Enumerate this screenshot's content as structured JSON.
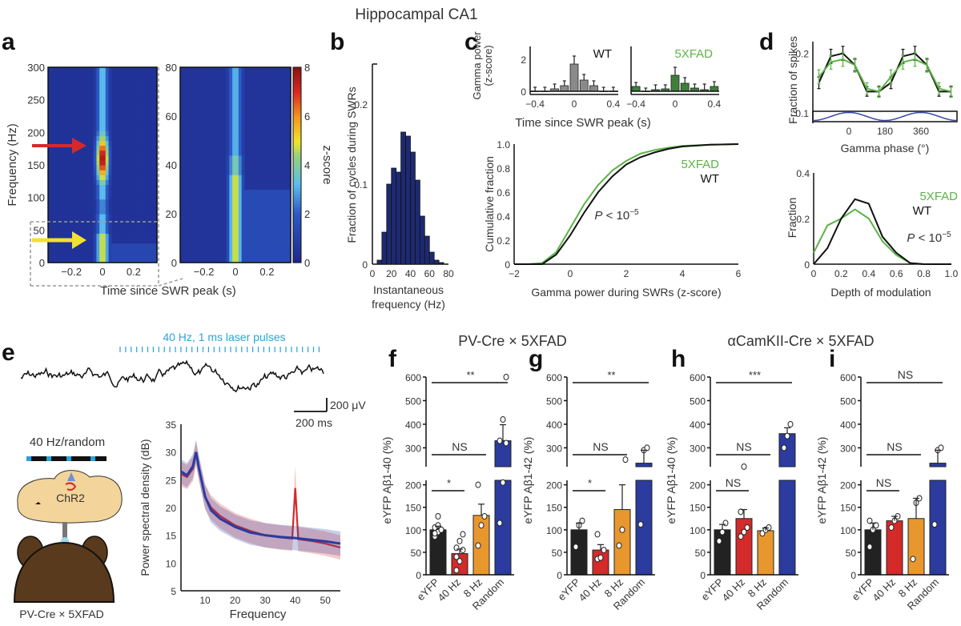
{
  "title": "Hippocampal CA1",
  "colors": {
    "wt": "#111111",
    "xfad": "#5cb346",
    "blue": "#2b3b9e",
    "red": "#d42a2a",
    "orange": "#e8972e",
    "black": "#222222",
    "laser": "#29a3dc",
    "brain": "#f3d49a",
    "mouse": "#5a3a1c"
  },
  "chart_data": [
    {
      "panel": "a",
      "type": "heatmap",
      "title": "",
      "xlabel": "Time since SWR peak (s)",
      "ylabel": "Frequency (Hz)",
      "left": {
        "xlim": [
          -0.35,
          0.35
        ],
        "ylim": [
          0,
          300
        ],
        "xticks": [
          "-0.2",
          "0",
          "0.2"
        ],
        "yticks": [
          "0",
          "50",
          "100",
          "150",
          "200",
          "250",
          "300"
        ]
      },
      "right": {
        "xlim": [
          -0.35,
          0.35
        ],
        "ylim": [
          0,
          80
        ],
        "xticks": [
          "-0.2",
          "0",
          "0.2"
        ],
        "yticks": [
          "0",
          "20",
          "40",
          "60",
          "80"
        ]
      },
      "colorbar": {
        "label": "z-score",
        "range": [
          0,
          8
        ],
        "ticks": [
          "0",
          "2",
          "4",
          "6",
          "8"
        ]
      },
      "annotations": [
        "red arrow at ~160 Hz (ripple)",
        "yellow arrow at ~35 Hz (gamma)"
      ]
    },
    {
      "panel": "b",
      "type": "bar",
      "xlabel": "Instantaneous frequency (Hz)",
      "ylabel": "Fraction of cycles during SWRs",
      "xlim": [
        0,
        80
      ],
      "ylim": [
        0,
        0.25
      ],
      "xticks": [
        "0",
        "20",
        "40",
        "60",
        "80"
      ],
      "yticks": [
        "0",
        "0.1",
        "0.2"
      ],
      "bin_width": 5,
      "bin_starts": [
        5,
        10,
        15,
        20,
        25,
        30,
        35,
        40,
        45,
        50,
        55,
        60,
        65,
        70
      ],
      "values": [
        0.005,
        0.04,
        0.1,
        0.12,
        0.115,
        0.165,
        0.16,
        0.14,
        0.105,
        0.06,
        0.035,
        0.015,
        0.005,
        0.002
      ]
    },
    {
      "panel": "c-top-wt",
      "type": "bar",
      "title": "WT",
      "ylabel": "Gamma power (z-score)",
      "xlabel": "Time since SWR peak (s)",
      "xlim": [
        -0.45,
        0.45
      ],
      "ylim": [
        -0.3,
        2.8
      ],
      "xticks": [
        "-0.4",
        "0",
        "0.4"
      ],
      "yticks": [
        "0",
        "2"
      ],
      "x": [
        -0.4,
        -0.3,
        -0.2,
        -0.1,
        0,
        0.1,
        0.2,
        0.3,
        0.4
      ],
      "values": [
        0,
        0,
        0.15,
        0.35,
        1.7,
        0.7,
        0.35,
        0,
        0
      ],
      "errors": [
        0.25,
        0.25,
        0.3,
        0.3,
        0.5,
        0.35,
        0.3,
        0.25,
        0.25
      ]
    },
    {
      "panel": "c-top-5xfad",
      "type": "bar",
      "title": "5XFAD",
      "xlabel": "Time since SWR peak (s)",
      "xlim": [
        -0.45,
        0.45
      ],
      "ylim": [
        -0.3,
        2.8
      ],
      "xticks": [
        "-0.4",
        "0",
        "0.4"
      ],
      "x": [
        -0.4,
        -0.3,
        -0.2,
        -0.1,
        0,
        0.1,
        0.2,
        0.3,
        0.4
      ],
      "values": [
        0.3,
        0,
        0.1,
        0.15,
        1.0,
        0.5,
        0.2,
        0.1,
        0.3
      ],
      "errors": [
        0.25,
        0.2,
        0.3,
        0.25,
        0.5,
        0.35,
        0.25,
        0.35,
        0.3
      ]
    },
    {
      "panel": "c-bottom",
      "type": "line",
      "xlabel": "Gamma power during SWRs (z-score)",
      "ylabel": "Cumulative fraction",
      "xlim": [
        -2,
        6
      ],
      "ylim": [
        0,
        1
      ],
      "xticks": [
        "-2",
        "0",
        "2",
        "4",
        "6"
      ],
      "yticks": [
        "0",
        "0.2",
        "0.4",
        "0.6",
        "0.8",
        "1.0"
      ],
      "annotation": "P < 10^-5",
      "series": [
        {
          "name": "5XFAD",
          "x": [
            -2,
            -1.5,
            -1,
            -0.5,
            0,
            0.5,
            1,
            1.5,
            2,
            2.5,
            3,
            3.5,
            4,
            5,
            6
          ],
          "y": [
            0,
            0,
            0.01,
            0.1,
            0.3,
            0.5,
            0.66,
            0.78,
            0.86,
            0.92,
            0.95,
            0.97,
            0.985,
            0.995,
            1.0
          ]
        },
        {
          "name": "WT",
          "x": [
            -2,
            -1.5,
            -1,
            -0.5,
            0,
            0.5,
            1,
            1.5,
            2,
            2.5,
            3,
            3.5,
            4,
            5,
            6
          ],
          "y": [
            0,
            0,
            0,
            0.08,
            0.24,
            0.43,
            0.6,
            0.73,
            0.83,
            0.89,
            0.93,
            0.96,
            0.98,
            0.995,
            1.0
          ]
        }
      ]
    },
    {
      "panel": "d-top",
      "type": "line",
      "xlabel": "Gamma phase (°)",
      "ylabel": "Fraction of spikes",
      "xlim": [
        -180,
        540
      ],
      "ylim": [
        0.1,
        0.22
      ],
      "xticks": [
        "0",
        "180",
        "360"
      ],
      "yticks": [
        "0.1",
        "0.2"
      ],
      "series": [
        {
          "name": "WT",
          "x": [
            -150,
            -90,
            -30,
            30,
            90,
            150,
            210,
            270,
            330,
            390,
            450,
            510
          ],
          "y": [
            0.15,
            0.195,
            0.2,
            0.18,
            0.135,
            0.135,
            0.15,
            0.195,
            0.2,
            0.18,
            0.135,
            0.135
          ],
          "errors": [
            0.01,
            0.012,
            0.012,
            0.01,
            0.008,
            0.008,
            0.01,
            0.012,
            0.012,
            0.01,
            0.008,
            0.008
          ]
        },
        {
          "name": "5XFAD",
          "x": [
            -150,
            -90,
            -30,
            30,
            90,
            150,
            210,
            270,
            330,
            390,
            450,
            510
          ],
          "y": [
            0.16,
            0.185,
            0.19,
            0.18,
            0.14,
            0.135,
            0.16,
            0.185,
            0.19,
            0.18,
            0.14,
            0.135
          ],
          "errors": [
            0.012,
            0.012,
            0.012,
            0.012,
            0.01,
            0.01,
            0.012,
            0.012,
            0.012,
            0.012,
            0.01,
            0.01
          ]
        }
      ]
    },
    {
      "panel": "d-bottom",
      "type": "line",
      "xlabel": "Depth of modulation",
      "ylabel": "Fraction",
      "xlim": [
        0,
        1
      ],
      "ylim": [
        0,
        0.4
      ],
      "xticks": [
        "0",
        "0.2",
        "0.4",
        "0.6",
        "0.8",
        "1.0"
      ],
      "yticks": [
        "0",
        "0.2",
        "0.4"
      ],
      "annotation": "P < 10^-5",
      "series": [
        {
          "name": "5XFAD",
          "x": [
            0,
            0.1,
            0.2,
            0.3,
            0.4,
            0.5,
            0.6,
            0.7,
            0.8,
            0.9,
            1.0
          ],
          "y": [
            0.05,
            0.17,
            0.2,
            0.24,
            0.2,
            0.1,
            0.04,
            0.005,
            0,
            0,
            0
          ]
        },
        {
          "name": "WT",
          "x": [
            0,
            0.1,
            0.2,
            0.3,
            0.4,
            0.5,
            0.6,
            0.7,
            0.8,
            0.9,
            1.0
          ],
          "y": [
            0,
            0.07,
            0.2,
            0.285,
            0.265,
            0.12,
            0.05,
            0.005,
            0,
            0,
            0
          ]
        }
      ]
    },
    {
      "panel": "e",
      "type": "line",
      "xlabel": "Frequency",
      "ylabel": "Power spectral density (dB)",
      "xlim": [
        2,
        55
      ],
      "ylim": [
        5,
        35
      ],
      "xticks": [
        "10",
        "20",
        "30",
        "40",
        "50"
      ],
      "yticks": [
        "5",
        "10",
        "15",
        "20",
        "25",
        "30",
        "35"
      ],
      "trace_label": "40 Hz, 1 ms laser pulses",
      "scalebar": {
        "voltage": "200 μV",
        "time": "200 ms"
      },
      "stim_label": "40 Hz/random",
      "opsin_label": "ChR2",
      "mouse_label": "PV-Cre × 5XFAD",
      "series": [
        {
          "name": "40 Hz",
          "color": "red",
          "x": [
            2,
            4,
            6,
            7,
            8,
            10,
            12,
            15,
            20,
            25,
            30,
            35,
            39,
            40,
            41,
            45,
            50,
            55
          ],
          "y": [
            26,
            25.5,
            27,
            29.8,
            27,
            22,
            20,
            18.5,
            16.8,
            15.8,
            15,
            14.6,
            14.4,
            23.5,
            14.3,
            14,
            13.5,
            12.8
          ]
        },
        {
          "name": "Random",
          "color": "blue",
          "x": [
            2,
            4,
            6,
            7,
            8,
            10,
            12,
            15,
            20,
            25,
            30,
            35,
            40,
            45,
            50,
            55
          ],
          "y": [
            26.5,
            25.8,
            27.5,
            30,
            27,
            22,
            19.5,
            18,
            16.5,
            15.5,
            15,
            14.7,
            14.5,
            14.2,
            13.9,
            13.5
          ]
        }
      ]
    },
    {
      "panel": "f",
      "type": "bar",
      "group_title": "PV-Cre × 5XFAD",
      "ylabel": "eYFP Aβ1-40 (%)",
      "categories": [
        "eYFP",
        "40 Hz",
        "8 Hz",
        "Random"
      ],
      "values": [
        100,
        47,
        132,
        330
      ],
      "errors": [
        8,
        10,
        25,
        68
      ],
      "points": [
        [
          85,
          95,
          100,
          105,
          110,
          100,
          92,
          130
        ],
        [
          10,
          30,
          55,
          60,
          75,
          90,
          40
        ],
        [
          65,
          110,
          130,
          200
        ],
        [
          115,
          205,
          320,
          330,
          420,
          600
        ]
      ],
      "ylim": [
        0,
        600
      ],
      "yticks": [
        "0",
        "50",
        "100",
        "150",
        "200",
        "300",
        "400",
        "500",
        "600"
      ],
      "significance": [
        {
          "pair": [
            "eYFP",
            "40 Hz"
          ],
          "label": "*"
        },
        {
          "pair": [
            "eYFP",
            "8 Hz"
          ],
          "label": "NS"
        },
        {
          "pair": [
            "eYFP",
            "Random"
          ],
          "label": "**"
        }
      ]
    },
    {
      "panel": "g",
      "type": "bar",
      "ylabel": "eYFP Aβ1-42 (%)",
      "categories": [
        "eYFP",
        "40 Hz",
        "8 Hz",
        "Random"
      ],
      "values": [
        100,
        55,
        145,
        235
      ],
      "errors": [
        15,
        12,
        55,
        55
      ],
      "points": [
        [
          62,
          110,
          120
        ],
        [
          35,
          38,
          55,
          90
        ],
        [
          65,
          100,
          250
        ],
        [
          112,
          290,
          300
        ]
      ],
      "ylim": [
        0,
        600
      ],
      "yticks": [
        "0",
        "50",
        "100",
        "150",
        "200",
        "300",
        "400",
        "500",
        "600"
      ],
      "significance": [
        {
          "pair": [
            "eYFP",
            "40 Hz"
          ],
          "label": "*"
        },
        {
          "pair": [
            "eYFP",
            "8 Hz"
          ],
          "label": "NS"
        },
        {
          "pair": [
            "eYFP",
            "Random"
          ],
          "label": "**"
        }
      ]
    },
    {
      "panel": "h",
      "type": "bar",
      "group_title": "αCamKII-Cre × 5XFAD",
      "ylabel": "eYFP Aβ1-40 (%)",
      "categories": [
        "eYFP",
        "40 Hz",
        "8 Hz",
        "Random"
      ],
      "values": [
        100,
        125,
        98,
        360
      ],
      "errors": [
        12,
        20,
        6,
        25
      ],
      "points": [
        [
          75,
          95,
          115
        ],
        [
          85,
          95,
          105,
          140,
          220
        ],
        [
          92,
          100,
          105
        ],
        [
          300,
          350,
          400
        ]
      ],
      "ylim": [
        0,
        600
      ],
      "yticks": [
        "0",
        "50",
        "100",
        "150",
        "200",
        "300",
        "400",
        "500",
        "600"
      ],
      "significance": [
        {
          "pair": [
            "eYFP",
            "40 Hz"
          ],
          "label": "NS"
        },
        {
          "pair": [
            "eYFP",
            "8 Hz"
          ],
          "label": "NS"
        },
        {
          "pair": [
            "eYFP",
            "Random"
          ],
          "label": "***"
        }
      ]
    },
    {
      "panel": "i",
      "type": "bar",
      "ylabel": "eYFP Aβ1-42 (%)",
      "categories": [
        "eYFP",
        "40 Hz",
        "8 Hz",
        "Random"
      ],
      "values": [
        100,
        120,
        125,
        235
      ],
      "errors": [
        15,
        10,
        45,
        55
      ],
      "points": [
        [
          62,
          100,
          110,
          120
        ],
        [
          105,
          120,
          130
        ],
        [
          35,
          160,
          170
        ],
        [
          112,
          290,
          300
        ]
      ],
      "ylim": [
        0,
        600
      ],
      "yticks": [
        "0",
        "50",
        "100",
        "150",
        "200",
        "300",
        "400",
        "500",
        "600"
      ],
      "significance": [
        {
          "pair": [
            "eYFP",
            "40 Hz"
          ],
          "label": "NS"
        },
        {
          "pair": [
            "eYFP",
            "8 Hz"
          ],
          "label": "NS"
        },
        {
          "pair": [
            "eYFP",
            "Random"
          ],
          "label": "NS"
        }
      ]
    }
  ]
}
